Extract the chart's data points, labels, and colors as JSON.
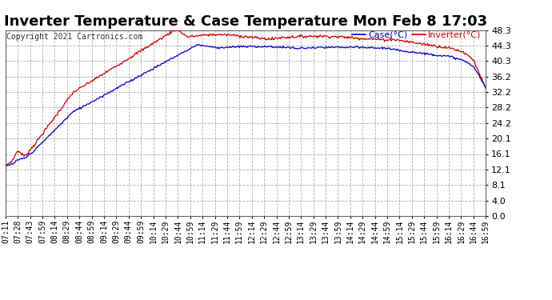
{
  "title": "Inverter Temperature & Case Temperature Mon Feb 8 17:03",
  "copyright": "Copyright 2021 Cartronics.com",
  "legend_case": "Case(°C)",
  "legend_inverter": "Inverter(°C)",
  "yticks": [
    0.0,
    4.0,
    8.1,
    12.1,
    16.1,
    20.1,
    24.2,
    28.2,
    32.2,
    36.2,
    40.3,
    44.3,
    48.3
  ],
  "xtick_labels": [
    "07:11",
    "07:28",
    "07:43",
    "07:59",
    "08:14",
    "08:29",
    "08:44",
    "08:59",
    "09:14",
    "09:29",
    "09:44",
    "09:59",
    "10:14",
    "10:29",
    "10:44",
    "10:59",
    "11:14",
    "11:29",
    "11:44",
    "11:59",
    "12:14",
    "12:29",
    "12:44",
    "12:59",
    "13:14",
    "13:29",
    "13:44",
    "13:59",
    "14:14",
    "14:29",
    "14:44",
    "14:59",
    "15:14",
    "15:29",
    "15:44",
    "15:59",
    "16:14",
    "16:29",
    "16:44",
    "16:59"
  ],
  "ylim": [
    0.0,
    48.3
  ],
  "bg_color": "#ffffff",
  "plot_bg_color": "#ffffff",
  "grid_color": "#b0b0b0",
  "case_color": "#0000cc",
  "inverter_color": "#cc0000",
  "title_color": "#000000",
  "title_fontsize": 13,
  "tick_fontsize": 8,
  "copyright_fontsize": 8,
  "figsize": [
    6.9,
    3.75
  ],
  "dpi": 100
}
